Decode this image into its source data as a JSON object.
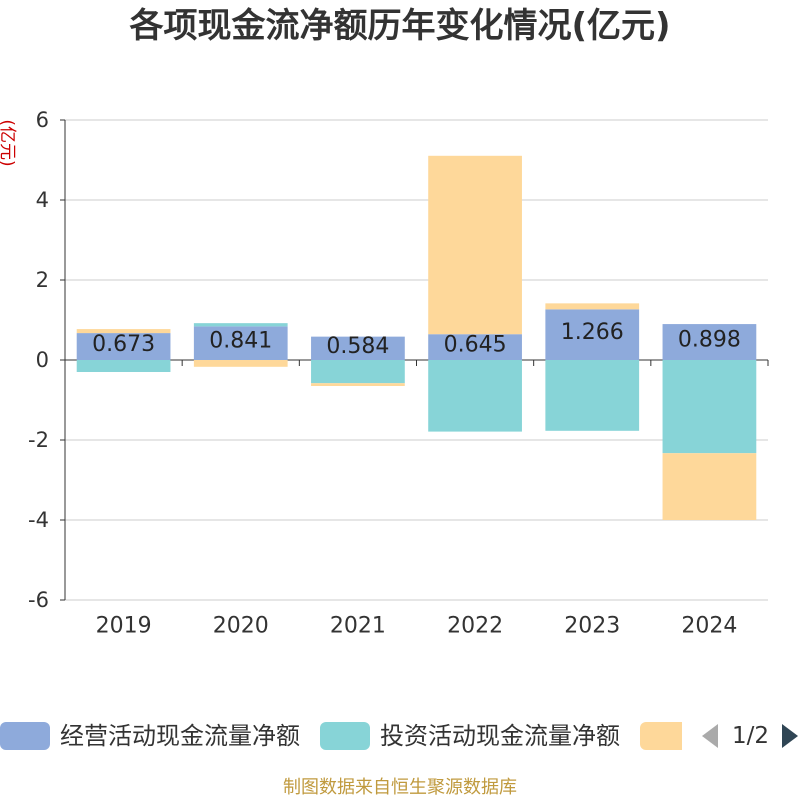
{
  "chart_data": {
    "type": "bar",
    "stacked": true,
    "title": "各项现金流净额历年变化情况(亿元)",
    "xlabel": "",
    "ylabel": "(亿元)",
    "ylim": [
      -6,
      6
    ],
    "yticks": [
      -6,
      -4,
      -2,
      0,
      2,
      4,
      6
    ],
    "grid": true,
    "categories": [
      "2019",
      "2020",
      "2021",
      "2022",
      "2023",
      "2024"
    ],
    "series": [
      {
        "name": "经营活动现金流量净额",
        "color": "#8eaadb",
        "show_labels": true,
        "values": [
          0.673,
          0.841,
          0.584,
          0.645,
          1.266,
          0.898
        ]
      },
      {
        "name": "投资活动现金流量净额",
        "color": "#87d4d7",
        "values": [
          -0.3,
          0.08,
          -0.58,
          -1.79,
          -1.77,
          -2.33
        ]
      },
      {
        "color": "#fed89a",
        "values": [
          0.1,
          -0.17,
          -0.07,
          4.46,
          0.15,
          -1.67
        ]
      }
    ],
    "legend": {
      "position": "bottom",
      "page_indicator": "1/2"
    }
  },
  "source_note": "制图数据来自恒生聚源数据库"
}
